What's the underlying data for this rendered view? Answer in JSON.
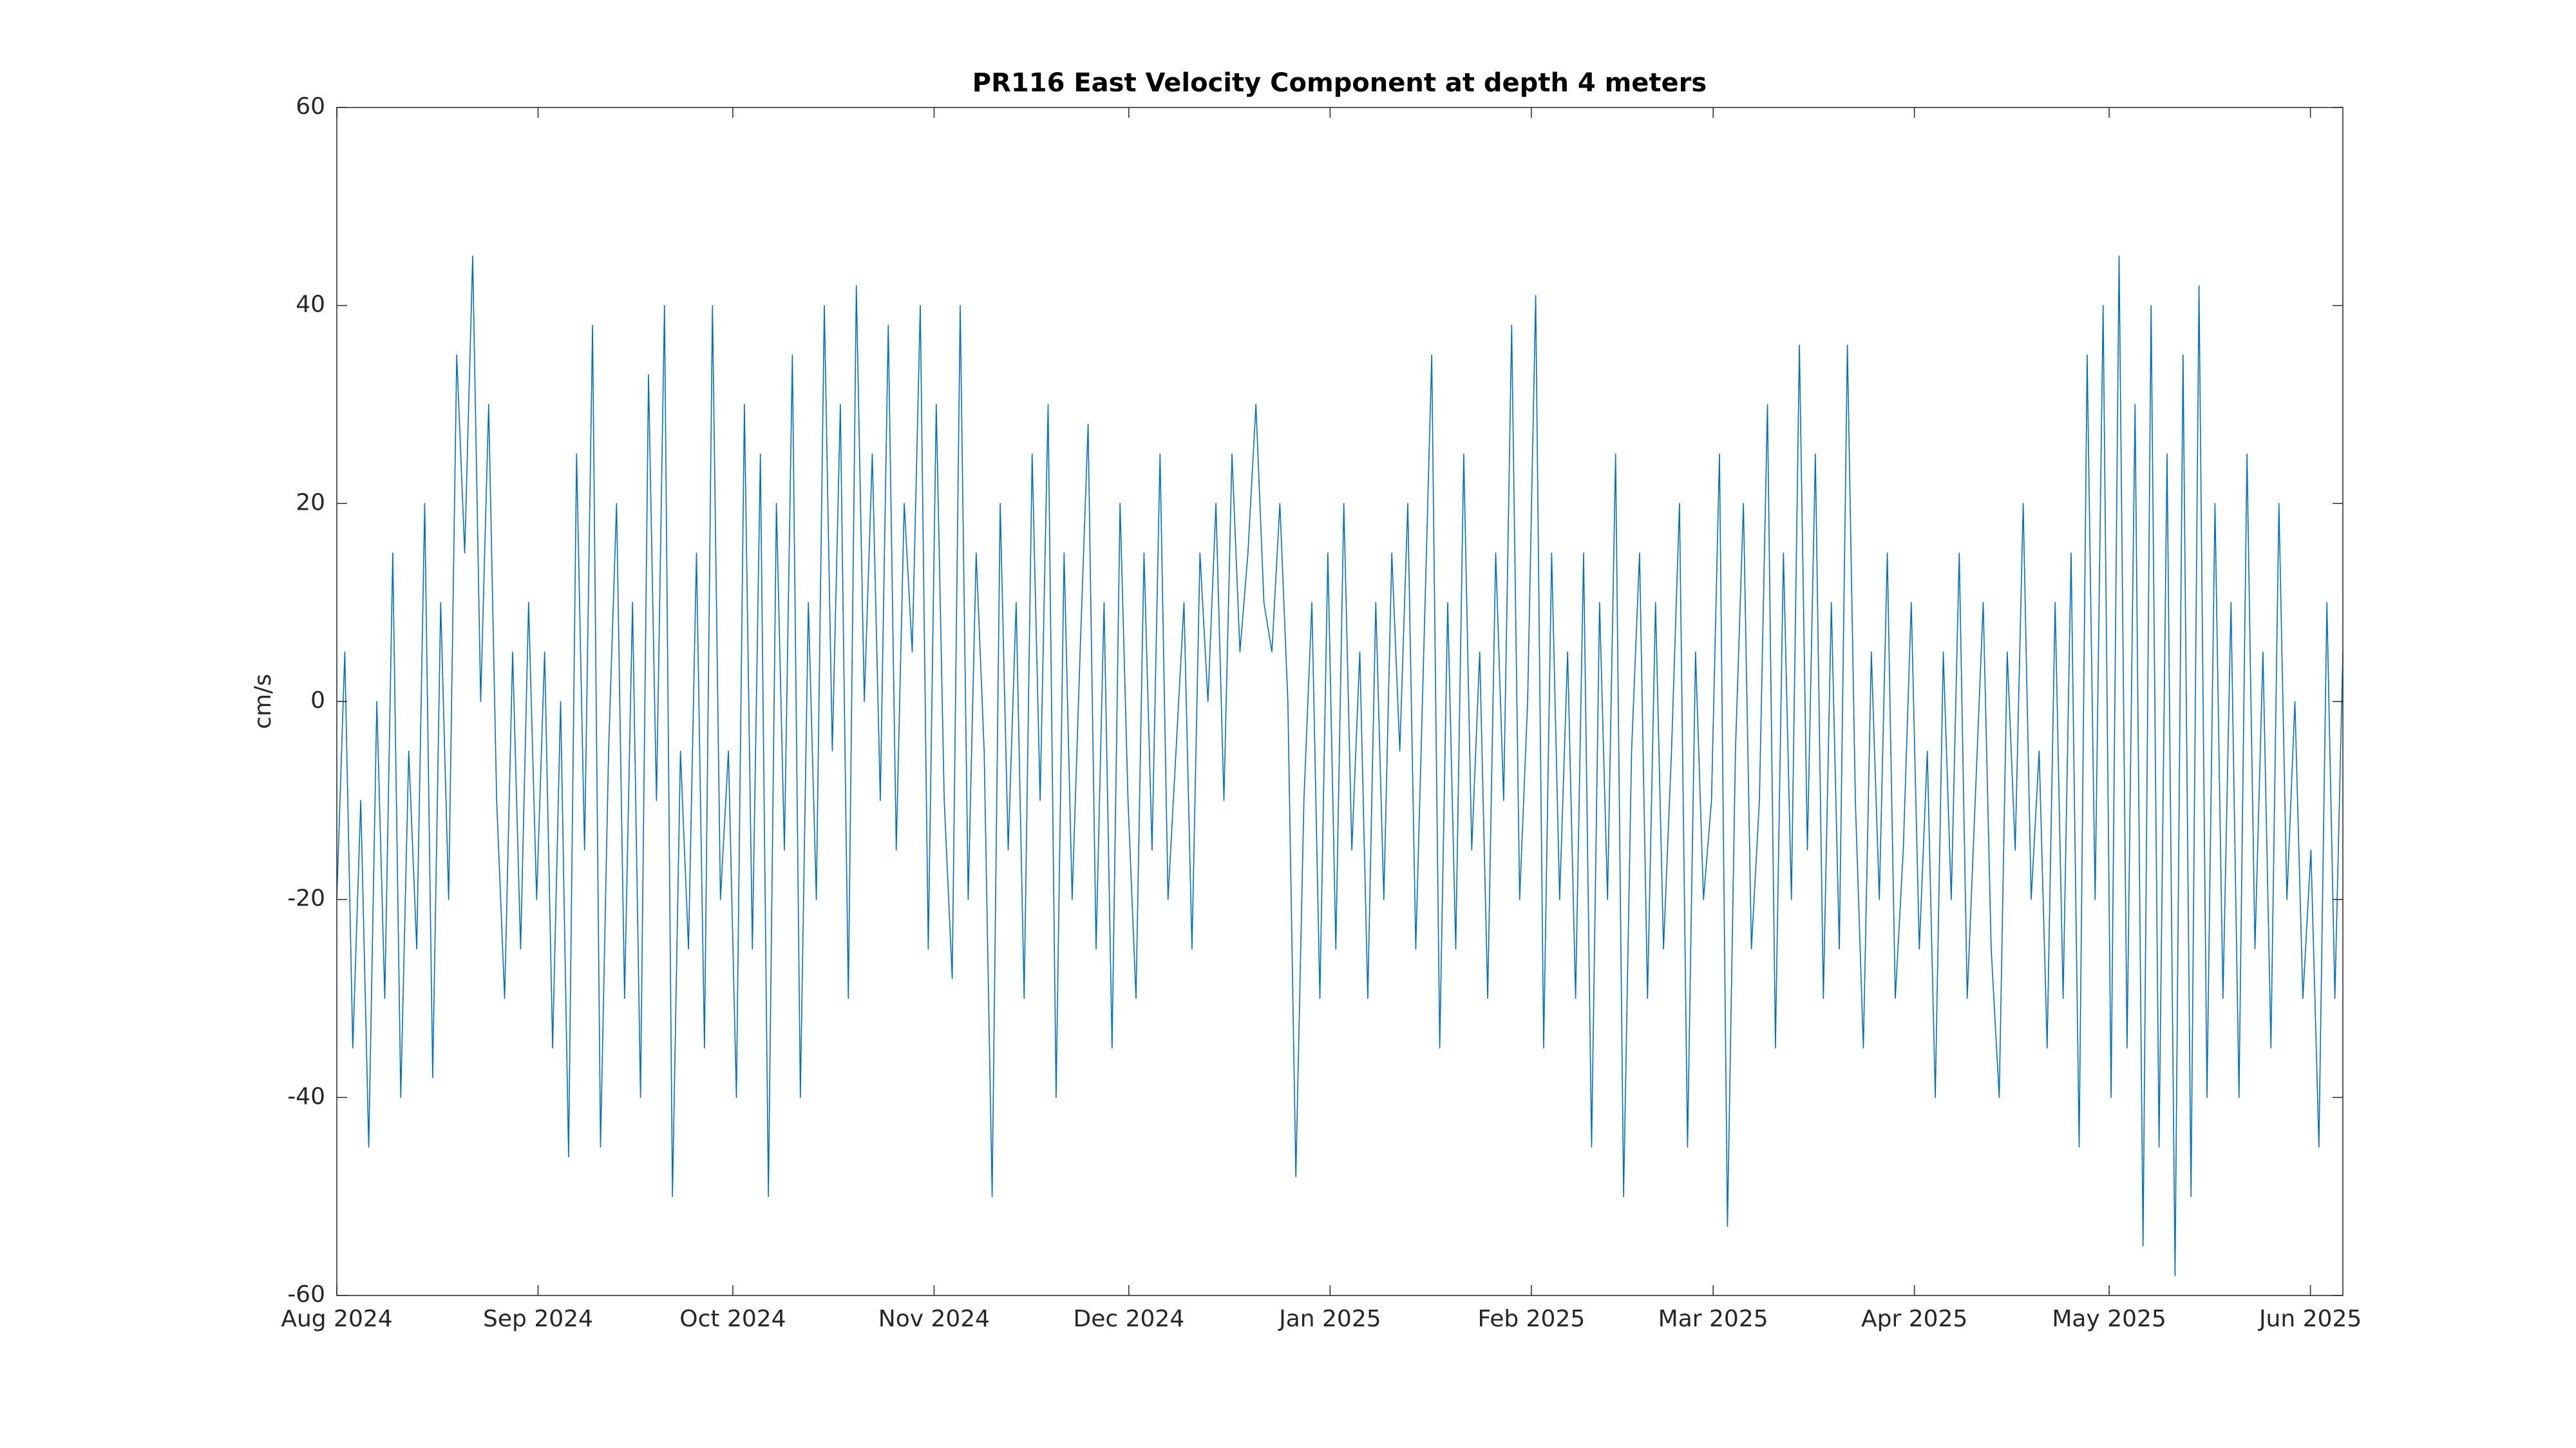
{
  "chart_data": {
    "type": "line",
    "title": "PR116 East Velocity Component at depth 4 meters",
    "y_label": "cm/s",
    "xlim": [
      "2024-08",
      "2025-06-06"
    ],
    "xticks": [
      {
        "value": "2024-08",
        "label": "Aug 2024"
      },
      {
        "value": "2024-09",
        "label": "Sep 2024"
      },
      {
        "value": "2024-10",
        "label": "Oct 2024"
      },
      {
        "value": "2024-11",
        "label": "Nov 2024"
      },
      {
        "value": "2024-12",
        "label": "Dec 2024"
      },
      {
        "value": "2025-01",
        "label": "Jan 2025"
      },
      {
        "value": "2025-02",
        "label": "Feb 2025"
      },
      {
        "value": "2025-03",
        "label": "Mar 2025"
      },
      {
        "value": "2025-04",
        "label": "Apr 2025"
      },
      {
        "value": "2025-05",
        "label": "May 2025"
      },
      {
        "value": "2025-06",
        "label": "Jun 2025"
      }
    ],
    "ylim": [
      -60,
      60
    ],
    "yticks": [
      -60,
      -40,
      -20,
      0,
      20,
      40,
      60
    ],
    "grid": false,
    "series": [
      {
        "color": "#0072bd",
        "values": [
          -20,
          5,
          -35,
          -10,
          -45,
          0,
          -30,
          15,
          -40,
          -5,
          -25,
          20,
          -38,
          10,
          -20,
          35,
          15,
          45,
          0,
          30,
          -10,
          -30,
          5,
          -25,
          10,
          -20,
          5,
          -35,
          0,
          -46,
          25,
          -15,
          38,
          -45,
          -5,
          20,
          -30,
          10,
          -40,
          33,
          -10,
          40,
          -50,
          -5,
          -25,
          15,
          -35,
          40,
          -20,
          -5,
          -40,
          30,
          -25,
          25,
          -50,
          20,
          -15,
          35,
          -40,
          10,
          -20,
          40,
          -5,
          30,
          -30,
          42,
          0,
          25,
          -10,
          38,
          -15,
          20,
          5,
          40,
          -25,
          30,
          -10,
          -28,
          40,
          -20,
          15,
          -5,
          -50,
          20,
          -15,
          10,
          -30,
          25,
          -10,
          30,
          -40,
          15,
          -20,
          5,
          28,
          -25,
          10,
          -35,
          20,
          -10,
          -30,
          15,
          -15,
          25,
          -20,
          -5,
          10,
          -25,
          15,
          0,
          20,
          -10,
          25,
          5,
          15,
          30,
          10,
          5,
          20,
          0,
          -48,
          -10,
          10,
          -30,
          15,
          -25,
          20,
          -15,
          5,
          -30,
          10,
          -20,
          15,
          -5,
          20,
          -25,
          5,
          35,
          -35,
          10,
          -25,
          25,
          -15,
          5,
          -30,
          15,
          -10,
          38,
          -20,
          0,
          41,
          -35,
          15,
          -20,
          5,
          -30,
          15,
          -45,
          10,
          -20,
          25,
          -50,
          -5,
          15,
          -30,
          10,
          -25,
          -5,
          20,
          -45,
          5,
          -20,
          -10,
          25,
          -53,
          -5,
          20,
          -25,
          -10,
          30,
          -35,
          15,
          -20,
          36,
          -15,
          25,
          -30,
          10,
          -25,
          36,
          -10,
          -35,
          5,
          -20,
          15,
          -30,
          -15,
          10,
          -25,
          -5,
          -40,
          5,
          -20,
          15,
          -30,
          -10,
          10,
          -25,
          -40,
          5,
          -15,
          20,
          -20,
          -5,
          -35,
          10,
          -30,
          15,
          -45,
          35,
          -20,
          40,
          -40,
          45,
          -35,
          30,
          -55,
          40,
          -45,
          25,
          -58,
          35,
          -50,
          42,
          -40,
          20,
          -30,
          10,
          -40,
          25,
          -25,
          5,
          -35,
          20,
          -20,
          0,
          -30,
          -15,
          -45,
          10,
          -30,
          5
        ]
      }
    ]
  }
}
